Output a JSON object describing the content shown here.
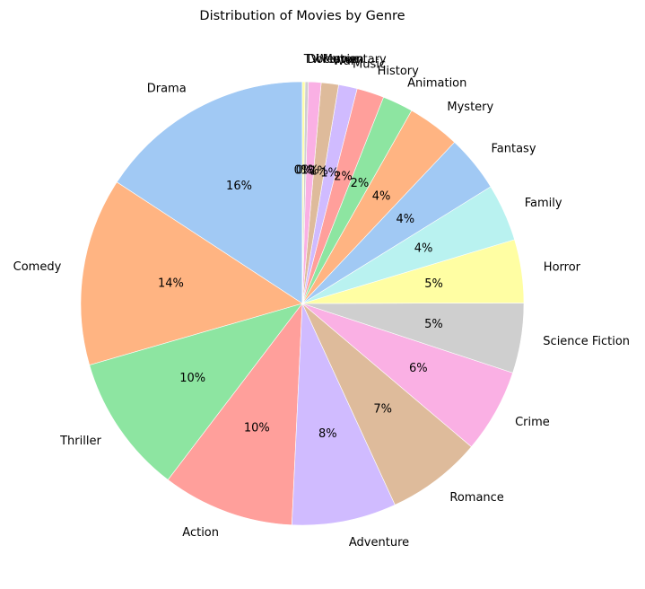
{
  "chart_data": {
    "type": "pie",
    "title": "Distribution of Movies by Genre",
    "start_angle_deg": 90,
    "direction": "counterclockwise",
    "slices": [
      {
        "label": "Drama",
        "value": 16.25,
        "pct_label": "16%",
        "color": "#a1c9f4"
      },
      {
        "label": "Comedy",
        "value": 14.1,
        "pct_label": "14%",
        "color": "#ffb482"
      },
      {
        "label": "Thriller",
        "value": 10.45,
        "pct_label": "10%",
        "color": "#8de5a1"
      },
      {
        "label": "Action",
        "value": 9.9,
        "pct_label": "10%",
        "color": "#ff9f9b"
      },
      {
        "label": "Adventure",
        "value": 7.85,
        "pct_label": "8%",
        "color": "#d0bbff"
      },
      {
        "label": "Romance",
        "value": 7.15,
        "pct_label": "7%",
        "color": "#debb9b"
      },
      {
        "label": "Crime",
        "value": 6.3,
        "pct_label": "6%",
        "color": "#fab0e4"
      },
      {
        "label": "Science Fiction",
        "value": 5.25,
        "pct_label": "5%",
        "color": "#cfcfcf"
      },
      {
        "label": "Horror",
        "value": 4.75,
        "pct_label": "5%",
        "color": "#fffea3"
      },
      {
        "label": "Family",
        "value": 4.3,
        "pct_label": "4%",
        "color": "#b9f2f0"
      },
      {
        "label": "Fantasy",
        "value": 4.25,
        "pct_label": "4%",
        "color": "#a1c9f4"
      },
      {
        "label": "Mystery",
        "value": 3.95,
        "pct_label": "4%",
        "color": "#ffb482"
      },
      {
        "label": "Animation",
        "value": 2.3,
        "pct_label": "2%",
        "color": "#8de5a1"
      },
      {
        "label": "History",
        "value": 2.05,
        "pct_label": "2%",
        "color": "#ff9f9b"
      },
      {
        "label": "Music",
        "value": 1.4,
        "pct_label": "1%",
        "color": "#d0bbff"
      },
      {
        "label": "War",
        "value": 1.3,
        "pct_label": "1%",
        "color": "#debb9b"
      },
      {
        "label": "Western",
        "value": 0.95,
        "pct_label": "1%",
        "color": "#fab0e4"
      },
      {
        "label": "Documentary",
        "value": 0.25,
        "pct_label": "0%",
        "color": "#cfcfcf"
      },
      {
        "label": "TV Movie",
        "value": 0.2,
        "pct_label": "0%",
        "color": "#fffea3"
      }
    ]
  }
}
